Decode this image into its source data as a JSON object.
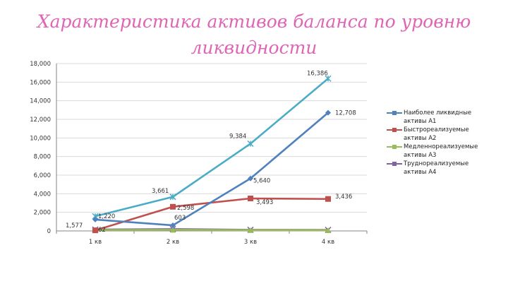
{
  "title": "Характеристика активов баланса по уровню ликвидности",
  "chart_data": {
    "type": "line",
    "categories": [
      "1 кв",
      "2 кв",
      "3 кв",
      "4 кв"
    ],
    "ylim": [
      0,
      18000
    ],
    "yticks": [
      0,
      2000,
      4000,
      6000,
      8000,
      10000,
      12000,
      14000,
      16000,
      18000
    ],
    "ytick_labels": [
      "0",
      "2,000",
      "4,000",
      "6,000",
      "8,000",
      "10,000",
      "12,000",
      "14,000",
      "16,000",
      "18,000"
    ],
    "legend_position": "right",
    "series": [
      {
        "name": "Наиболее ликвидные активы А1",
        "color": "#4f81bd",
        "marker": "diamond",
        "values": [
          1220,
          603,
          5640,
          12708
        ],
        "data_labels": [
          "1,220",
          "603",
          "5,640",
          "12,708"
        ]
      },
      {
        "name": "Быстрореализуемые активы А2",
        "color": "#c0504d",
        "marker": "square",
        "values": [
          62,
          2598,
          3493,
          3436
        ],
        "data_labels": [
          "62",
          "2,598",
          "3,493",
          "3,436"
        ]
      },
      {
        "name": "Медленнореализуемые активы А3",
        "color": "#9bbb59",
        "marker": "triangle",
        "values": [
          100,
          120,
          90,
          80
        ],
        "data_labels": []
      },
      {
        "name": "Труднореализуемые активы А4",
        "color": "#8064a2",
        "marker": "x",
        "values": [
          150,
          200,
          120,
          110
        ],
        "data_labels": []
      },
      {
        "name": "",
        "color": "#4bacc6",
        "marker": "star",
        "values": [
          1577,
          3661,
          9384,
          16386
        ],
        "data_labels": [
          "1,577",
          "3,661",
          "9,384",
          "16,386"
        ],
        "in_legend": false
      }
    ]
  }
}
